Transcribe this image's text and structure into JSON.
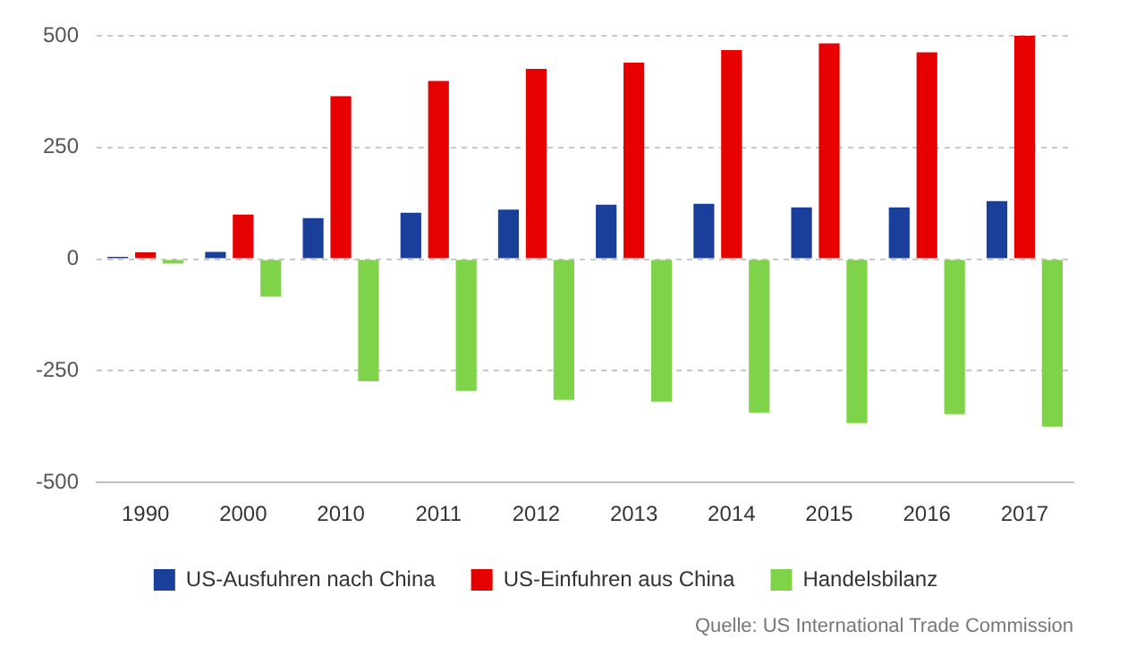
{
  "chart_data": {
    "type": "bar",
    "categories": [
      "1990",
      "2000",
      "2010",
      "2011",
      "2012",
      "2013",
      "2014",
      "2015",
      "2016",
      "2017"
    ],
    "series": [
      {
        "name": "US-Ausfuhren nach China",
        "color": "#1a3f9b",
        "values": [
          5,
          16,
          92,
          104,
          111,
          122,
          124,
          116,
          116,
          130
        ]
      },
      {
        "name": "US-Einfuhren aus China",
        "color": "#e60000",
        "values": [
          15,
          100,
          365,
          399,
          426,
          440,
          468,
          483,
          463,
          500
        ]
      },
      {
        "name": "Handelsbilanz",
        "color": "#7ed348",
        "values": [
          -10,
          -84,
          -273,
          -295,
          -315,
          -319,
          -344,
          -367,
          -347,
          -375
        ]
      }
    ],
    "ylim": [
      -500,
      500
    ],
    "yticks": [
      -500,
      -250,
      0,
      250,
      500
    ],
    "grid": "y",
    "legend": "bottom",
    "annotations": [
      "Quelle: US International Trade Commission"
    ]
  }
}
